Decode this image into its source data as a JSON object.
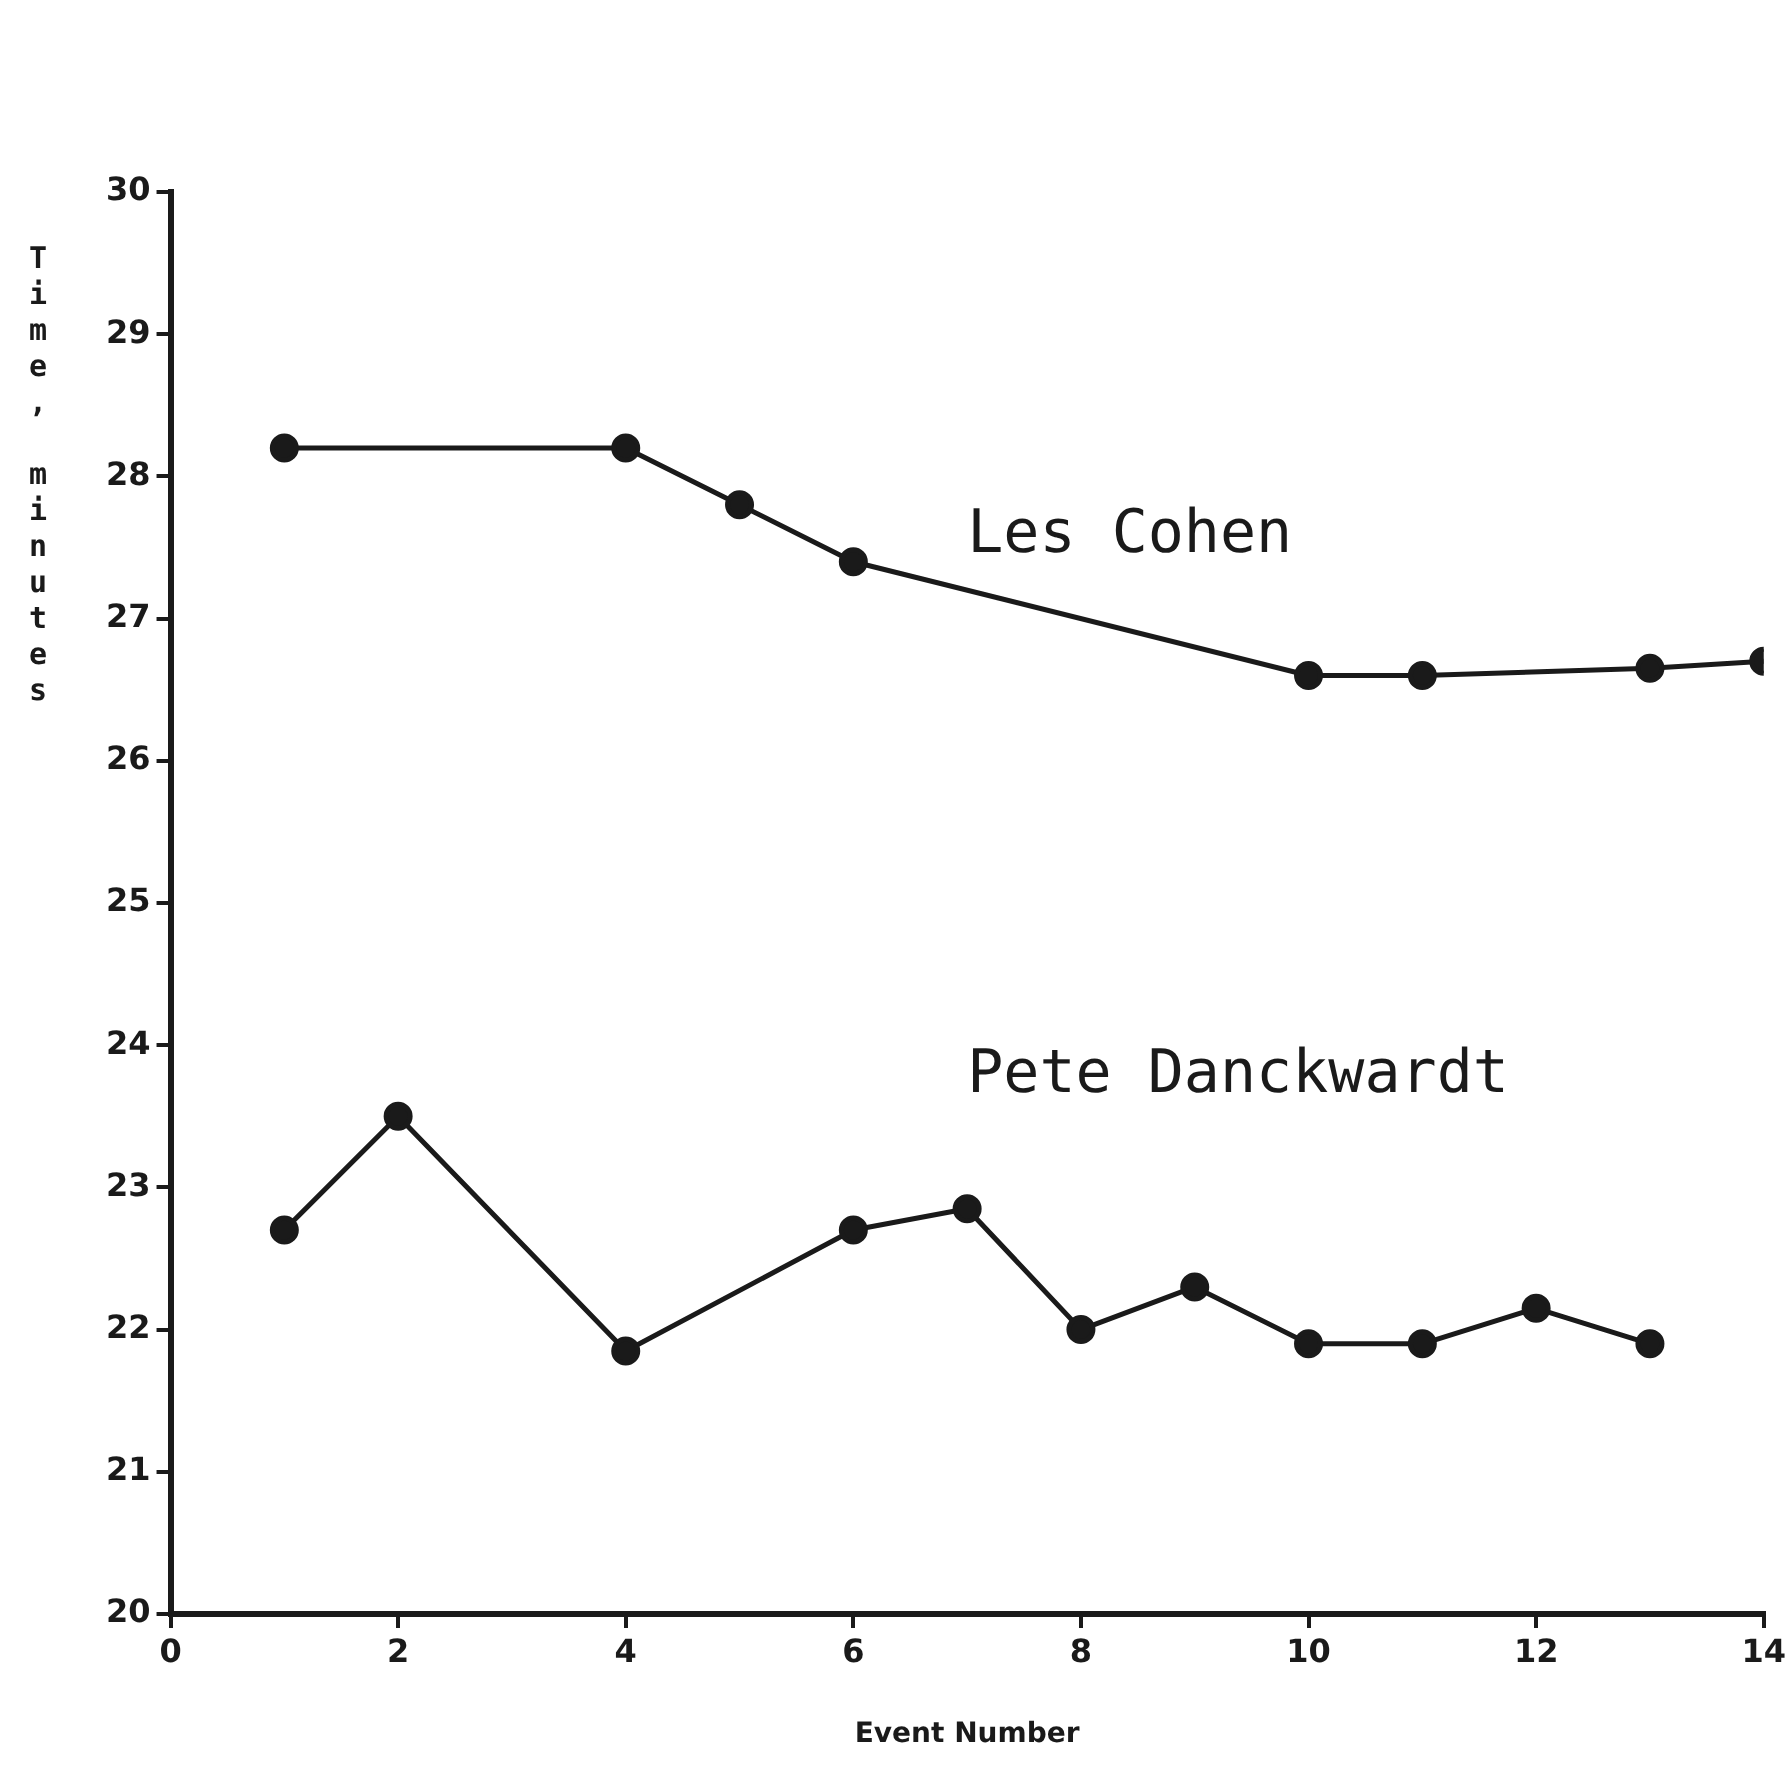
{
  "chart_data": {
    "type": "line",
    "xlabel": "Event Number",
    "ylabel": "Time, minutes",
    "xlim": [
      0,
      14
    ],
    "xticks": [
      0,
      2,
      4,
      6,
      8,
      10,
      12,
      14
    ],
    "ylim": [
      20,
      30
    ],
    "yticks": [
      20,
      21,
      22,
      23,
      24,
      25,
      26,
      27,
      28,
      29,
      30
    ],
    "grid": false,
    "legend": false,
    "marker": "circle",
    "line_style": "solid",
    "series": [
      {
        "name": "Les Cohen",
        "color": "#1a1a1a",
        "x": [
          1,
          4,
          5,
          6,
          10,
          11,
          13,
          14
        ],
        "values": [
          28.2,
          28.2,
          27.8,
          27.4,
          26.6,
          26.6,
          26.65,
          26.7
        ]
      },
      {
        "name": "Pete Danckwardt",
        "color": "#1a1a1a",
        "x": [
          1,
          2,
          4,
          6,
          7,
          8,
          9,
          10,
          11,
          12,
          13
        ],
        "values": [
          22.7,
          23.5,
          21.85,
          22.7,
          22.85,
          22.0,
          22.3,
          21.9,
          21.9,
          22.15,
          21.9
        ]
      }
    ]
  }
}
